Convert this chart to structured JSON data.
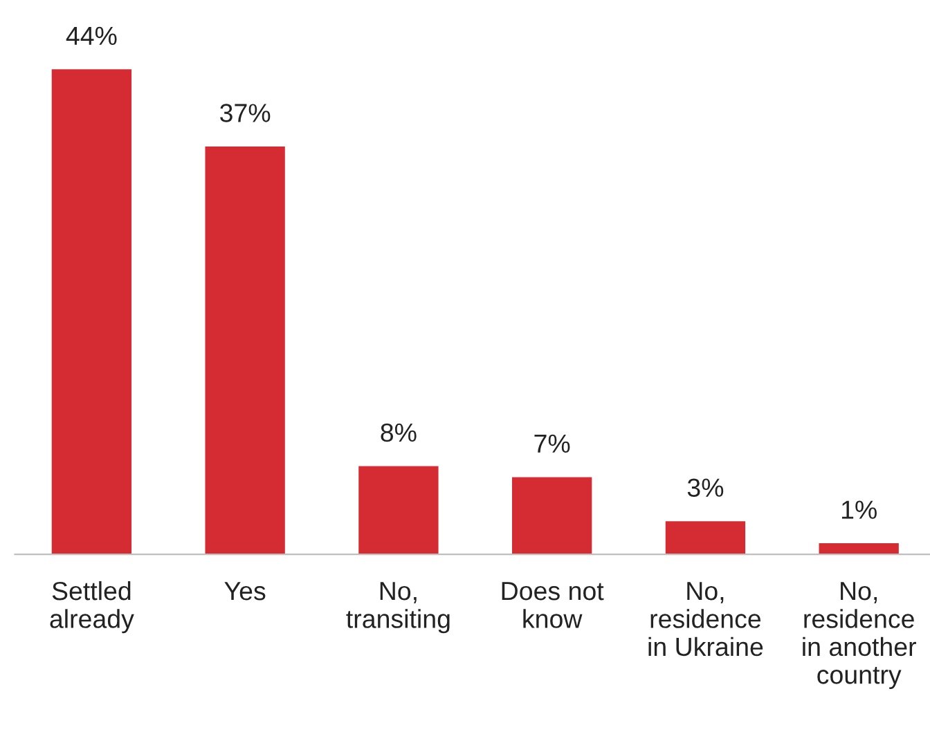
{
  "chart_data": {
    "type": "bar",
    "categories": [
      "Settled\nalready",
      "Yes",
      "No,\ntransiting",
      "Does not\nknow",
      "No,\nresidence\nin Ukraine",
      "No,\nresidence\nin another\ncountry"
    ],
    "values": [
      44,
      37,
      8,
      7,
      3,
      1
    ],
    "value_labels": [
      "44%",
      "37%",
      "8%",
      "7%",
      "3%",
      "1%"
    ],
    "color": "#d52b33"
  }
}
